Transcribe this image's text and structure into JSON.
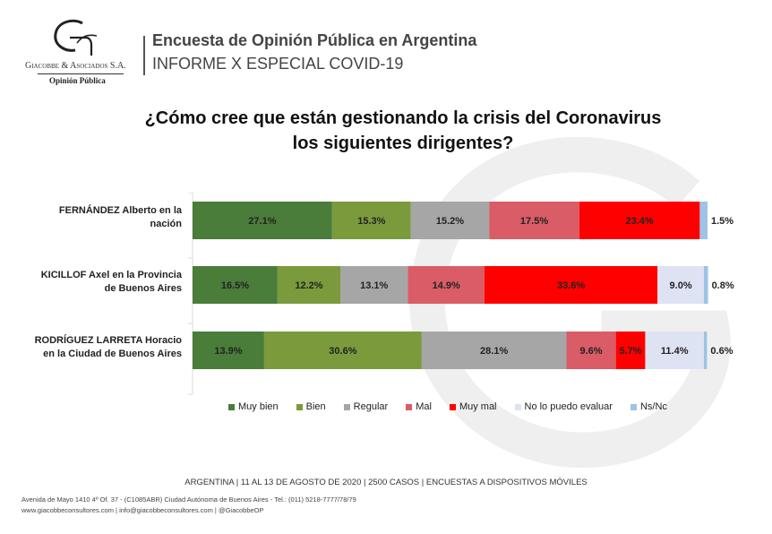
{
  "header": {
    "logo_name": "Giacobbe & Asociados S.A.",
    "logo_sub": "Opinión Pública",
    "title": "Encuesta de Opinión Pública en Argentina",
    "subtitle": "INFORME X ESPECIAL COVID-19"
  },
  "colors": {
    "Muy bien": "#4a7c3a",
    "Bien": "#7a9a3c",
    "Regular": "#a6a6a6",
    "Mal": "#d95c66",
    "Muy mal": "#ff0000",
    "No lo puedo evaluar": "#dde3f3",
    "Ns/Nc": "#9dc3e6"
  },
  "chart_data": {
    "type": "bar",
    "orientation": "horizontal",
    "stacked": "percent",
    "title": "¿Cómo cree que están gestionando la crisis del Coronavirus los siguientes dirigentes?",
    "categories": [
      [
        "FERNÁNDEZ Alberto en la",
        "nación"
      ],
      [
        "KICILLOF Axel en la Provincia",
        "de Buenos Aires"
      ],
      [
        "RODRÍGUEZ LARRETA Horacio",
        "en la Ciudad de Buenos Aires"
      ]
    ],
    "series": [
      {
        "name": "Muy bien",
        "values": [
          27.1,
          16.5,
          13.9
        ]
      },
      {
        "name": "Bien",
        "values": [
          15.3,
          12.2,
          30.6
        ]
      },
      {
        "name": "Regular",
        "values": [
          15.2,
          13.1,
          28.1
        ]
      },
      {
        "name": "Mal",
        "values": [
          17.5,
          14.9,
          9.6
        ]
      },
      {
        "name": "Muy mal",
        "values": [
          23.4,
          33.6,
          5.7
        ]
      },
      {
        "name": "No lo puedo evaluar",
        "values": [
          0,
          9.0,
          11.4
        ]
      },
      {
        "name": "Ns/Nc",
        "values": [
          1.5,
          0.8,
          0.6
        ]
      }
    ],
    "data_labels": [
      [
        "27.1%",
        "15.3%",
        "15.2%",
        "17.5%",
        "23.4%",
        "",
        "1.5%"
      ],
      [
        "16.5%",
        "12.2%",
        "13.1%",
        "14.9%",
        "33.6%",
        "9.0%",
        "0.8%"
      ],
      [
        "13.9%",
        "30.6%",
        "28.1%",
        "9.6%",
        "5.7%",
        "11.4%",
        "0.6%"
      ]
    ],
    "xlim": [
      0,
      100
    ],
    "legend_position": "bottom",
    "grid": false
  },
  "footer": {
    "fieldwork": "ARGENTINA | 11 AL 13 DE AGOSTO DE 2020 | 2500 CASOS | ENCUESTAS A DISPOSITIVOS MÓVILES",
    "address": "Avenida de Mayo 1410 4º Of. 37 - (C1085ABR) Ciudad Autónoma de Buenos Aires - Tel.: (011) 5218-7777/78/79",
    "contact": "www.giacobbeconsultores.com | info@giacobbeconsultores.com | @GiacobbeOP"
  }
}
